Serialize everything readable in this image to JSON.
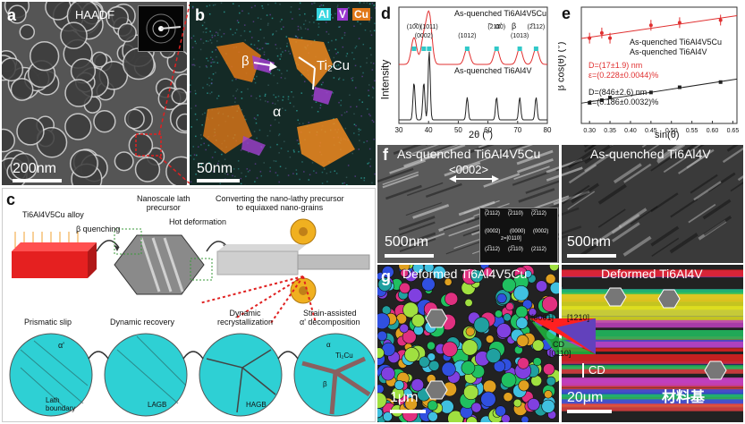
{
  "panel_a": {
    "label": "a",
    "mode": "HAADF",
    "scalebar": "200nm"
  },
  "panel_b": {
    "label": "b",
    "legend": [
      "Al",
      "V",
      "Cu"
    ],
    "legend_colors": [
      "#38d6e0",
      "#c04ce0",
      "#ff9a1e"
    ],
    "beta": "β",
    "ti2cu": "Ti₂Cu",
    "alpha": "α",
    "scalebar": "50nm"
  },
  "panel_c": {
    "label": "c",
    "alloy": "Ti6Al4V5Cu alloy",
    "quench": "β quenching",
    "precursor": "Nanoscale lath\nprecursor",
    "hot": "Hot deformation",
    "converting": "Converting the nano-lathy precursor\nto equiaxed nano-grains",
    "stages": [
      "Prismatic slip",
      "Dynamic recovery",
      "Dynamic\nrecrystallization",
      "Strain-assisted\nα' decomposition"
    ],
    "alpha_p": "α'",
    "lath": "Lath\nboundary",
    "lagb": "LAGB",
    "hagb": "HAGB",
    "ti2cu": "Ti₂Cu",
    "alpha": "α",
    "beta": "β"
  },
  "chart_data": [
    {
      "type": "line",
      "label": "d",
      "xlabel": "2θ (°)",
      "ylabel": "Intensity",
      "xlim": [
        30,
        80
      ],
      "xticks": [
        30,
        40,
        50,
        60,
        70,
        80
      ],
      "series": [
        {
          "name": "As-quenched Ti6Al4V5Cu",
          "color": "#e03030"
        },
        {
          "name": "As-quenched Ti6Al4V",
          "color": "#222222"
        }
      ],
      "peak_labels": [
        "(10̅0)",
        "(0002)",
        "(1011)",
        "(1012)",
        "(̅2110)",
        "(1013)",
        "(2̅112)"
      ],
      "marker_labels": [
        "α'",
        "β"
      ],
      "peaks_2theta": [
        35.1,
        38.4,
        40.2,
        53.0,
        62.9,
        70.7,
        76.2
      ]
    },
    {
      "type": "scatter",
      "label": "e",
      "xlabel": "sin(θ)",
      "ylabel": "β cos(θ) (°)",
      "xlim": [
        0.28,
        0.66
      ],
      "xticks": [
        0.3,
        0.35,
        0.4,
        0.45,
        0.5,
        0.55,
        0.6,
        0.65
      ],
      "series": [
        {
          "name": "As-quenched Ti6Al4V5Cu",
          "color": "#e03030",
          "x": [
            0.3,
            0.33,
            0.35,
            0.45,
            0.52,
            0.62
          ],
          "y": [
            0.66,
            0.7,
            0.66,
            0.76,
            0.78,
            0.8
          ]
        },
        {
          "name": "As-quenched Ti6Al4V",
          "color": "#222222",
          "x": [
            0.3,
            0.33,
            0.35,
            0.45,
            0.52,
            0.62
          ],
          "y": [
            0.16,
            0.18,
            0.2,
            0.24,
            0.28,
            0.32
          ]
        }
      ],
      "annotations": [
        "D=(17±1.9) nm",
        "ε=(0.228±0.0044)%",
        "D=(846±2.6) nm",
        "ε=(0.186±0.0032)%"
      ]
    }
  ],
  "panel_f": {
    "label": "f",
    "left_title": "As-quenched Ti6Al4V5Cu",
    "right_title": "As-quenched Ti6Al4V",
    "direction": "<0002>",
    "scalebar": "500nm",
    "inset_labels": [
      "(̅2112)",
      "(̅2110)",
      "(̅2̅112)",
      "(0002)",
      "(0000)",
      "(0002)",
      "(2̅112)",
      "(2̅110)",
      "(2112)",
      "z=[0110]"
    ]
  },
  "panel_g": {
    "label": "g",
    "left_title": "Deformed Ti6Al4V5Cu",
    "right_title": "Deformed Ti6Al4V",
    "key_labels": [
      "[0001]",
      "[1210]",
      "[0110]",
      "CD"
    ],
    "cd": "CD",
    "scale_left": "1μm",
    "scale_right": "20μm",
    "watermark": "材料基"
  }
}
